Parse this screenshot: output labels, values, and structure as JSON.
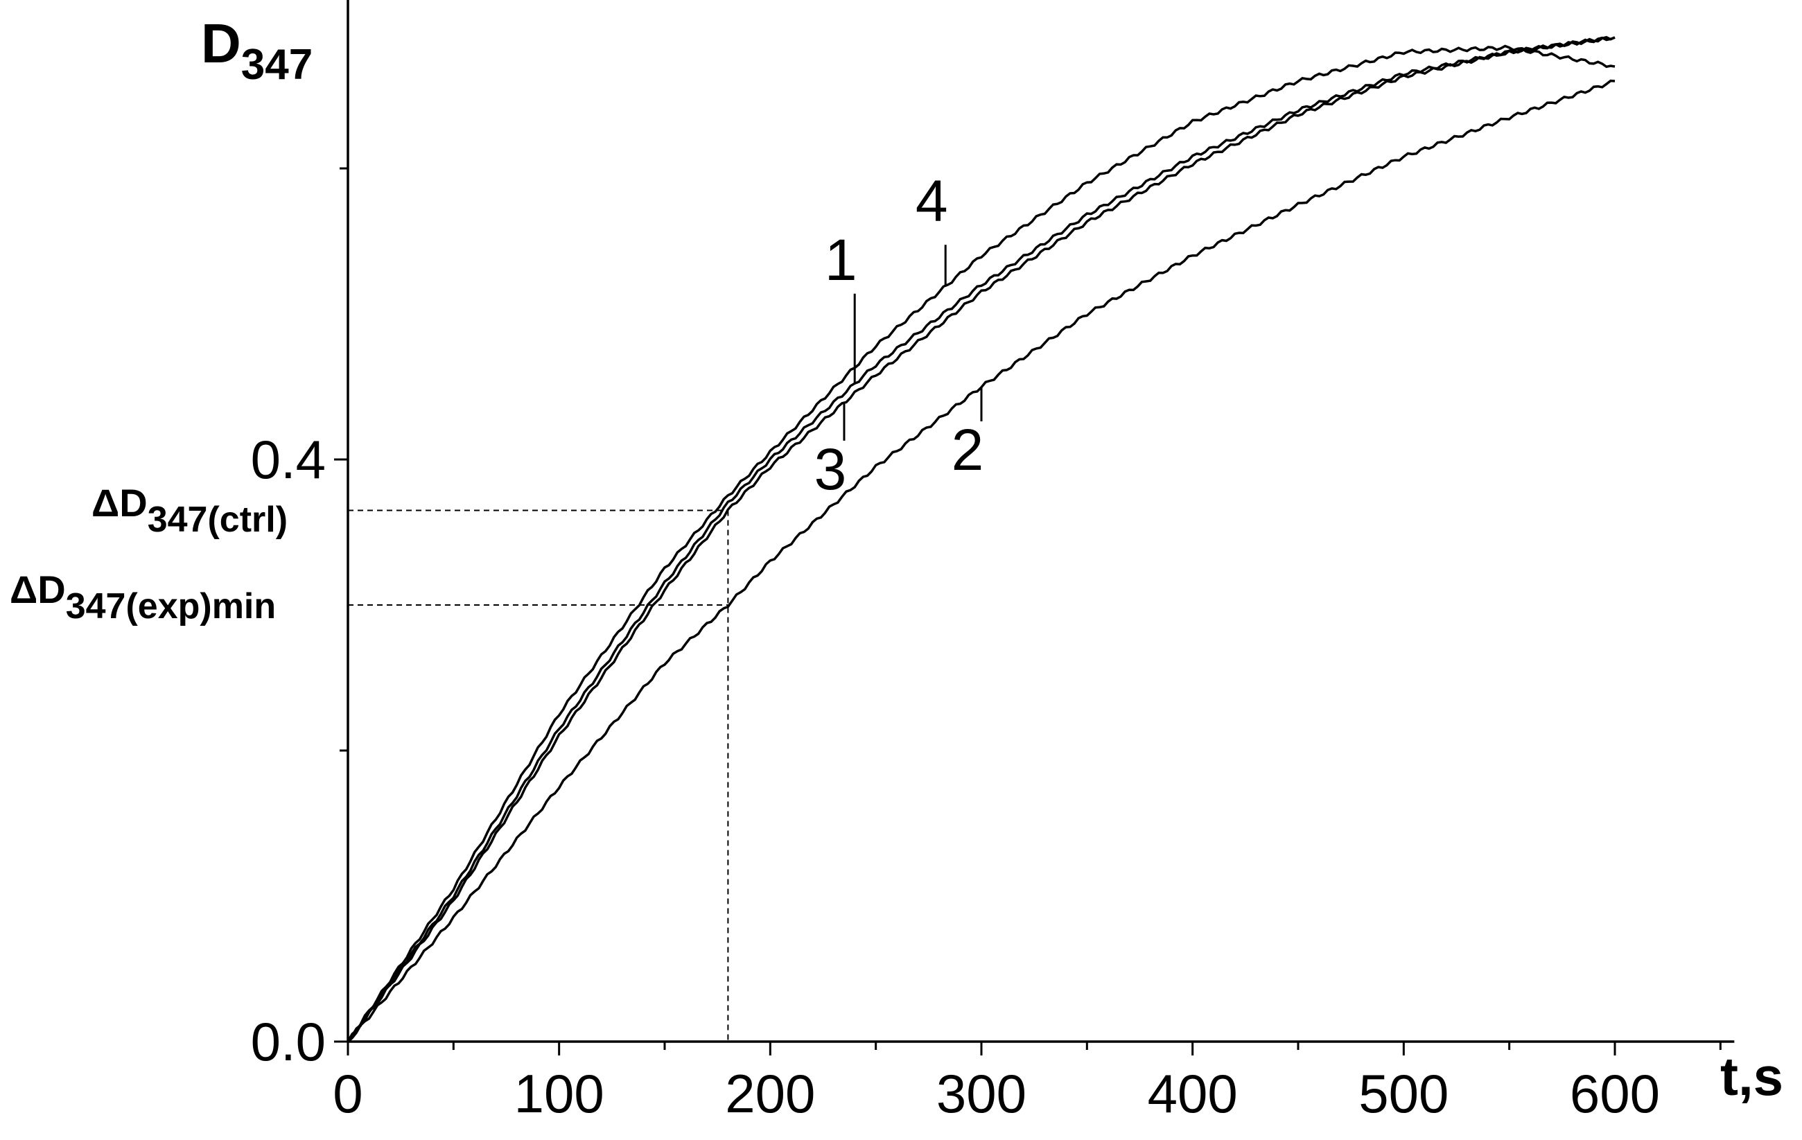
{
  "chart_data": {
    "type": "line",
    "title": "",
    "ylabel": "D",
    "ylabel_sub": "347",
    "xlabel": "t,s",
    "xlim": [
      0,
      650
    ],
    "ylim": [
      0,
      0.72
    ],
    "x_ticks": [
      0,
      100,
      200,
      300,
      400,
      500,
      600
    ],
    "x_tick_labels": [
      "0",
      "100",
      "200",
      "300",
      "400",
      "500",
      "600"
    ],
    "x_minor_ticks": [
      50,
      150,
      250,
      350,
      450,
      550,
      650
    ],
    "y_ticks": [
      0.0,
      0.4
    ],
    "y_tick_labels": [
      "0.0",
      "0.4"
    ],
    "y_minor_ticks": [
      0.2,
      0.6
    ],
    "grid": false,
    "series": [
      {
        "name": "1",
        "x": [
          0,
          50,
          100,
          150,
          180,
          200,
          250,
          300,
          350,
          400,
          450,
          500,
          550,
          600
        ],
        "values": [
          0,
          0.1,
          0.215,
          0.315,
          0.37,
          0.4,
          0.465,
          0.52,
          0.568,
          0.608,
          0.64,
          0.665,
          0.68,
          0.69
        ]
      },
      {
        "name": "2",
        "x": [
          0,
          50,
          100,
          150,
          180,
          200,
          250,
          300,
          350,
          400,
          450,
          500,
          550,
          600
        ],
        "values": [
          0,
          0.085,
          0.175,
          0.26,
          0.3,
          0.33,
          0.395,
          0.45,
          0.5,
          0.54,
          0.575,
          0.608,
          0.635,
          0.66
        ]
      },
      {
        "name": "3",
        "x": [
          0,
          50,
          100,
          150,
          180,
          200,
          250,
          300,
          350,
          400,
          450,
          500,
          550,
          600
        ],
        "values": [
          0,
          0.097,
          0.21,
          0.31,
          0.365,
          0.395,
          0.458,
          0.515,
          0.563,
          0.603,
          0.637,
          0.663,
          0.68,
          0.69
        ]
      },
      {
        "name": "4",
        "x": [
          0,
          50,
          100,
          150,
          180,
          200,
          250,
          300,
          350,
          400,
          450,
          500,
          550,
          600
        ],
        "values": [
          0,
          0.105,
          0.225,
          0.325,
          0.375,
          0.405,
          0.478,
          0.54,
          0.59,
          0.632,
          0.66,
          0.68,
          0.683,
          0.67
        ]
      }
    ],
    "reference_lines": {
      "x": 180,
      "ctrl": {
        "label": "ΔD",
        "sub": "347(ctrl)",
        "value": 0.365
      },
      "exp": {
        "label": "ΔD",
        "sub": "347(exp)min",
        "value": 0.3
      }
    },
    "curve_labels": [
      {
        "text": "1",
        "series": "1",
        "at_x": 240
      },
      {
        "text": "2",
        "series": "2",
        "at_x": 300
      },
      {
        "text": "3",
        "series": "3",
        "at_x": 235
      },
      {
        "text": "4",
        "series": "4",
        "at_x": 283
      }
    ]
  }
}
